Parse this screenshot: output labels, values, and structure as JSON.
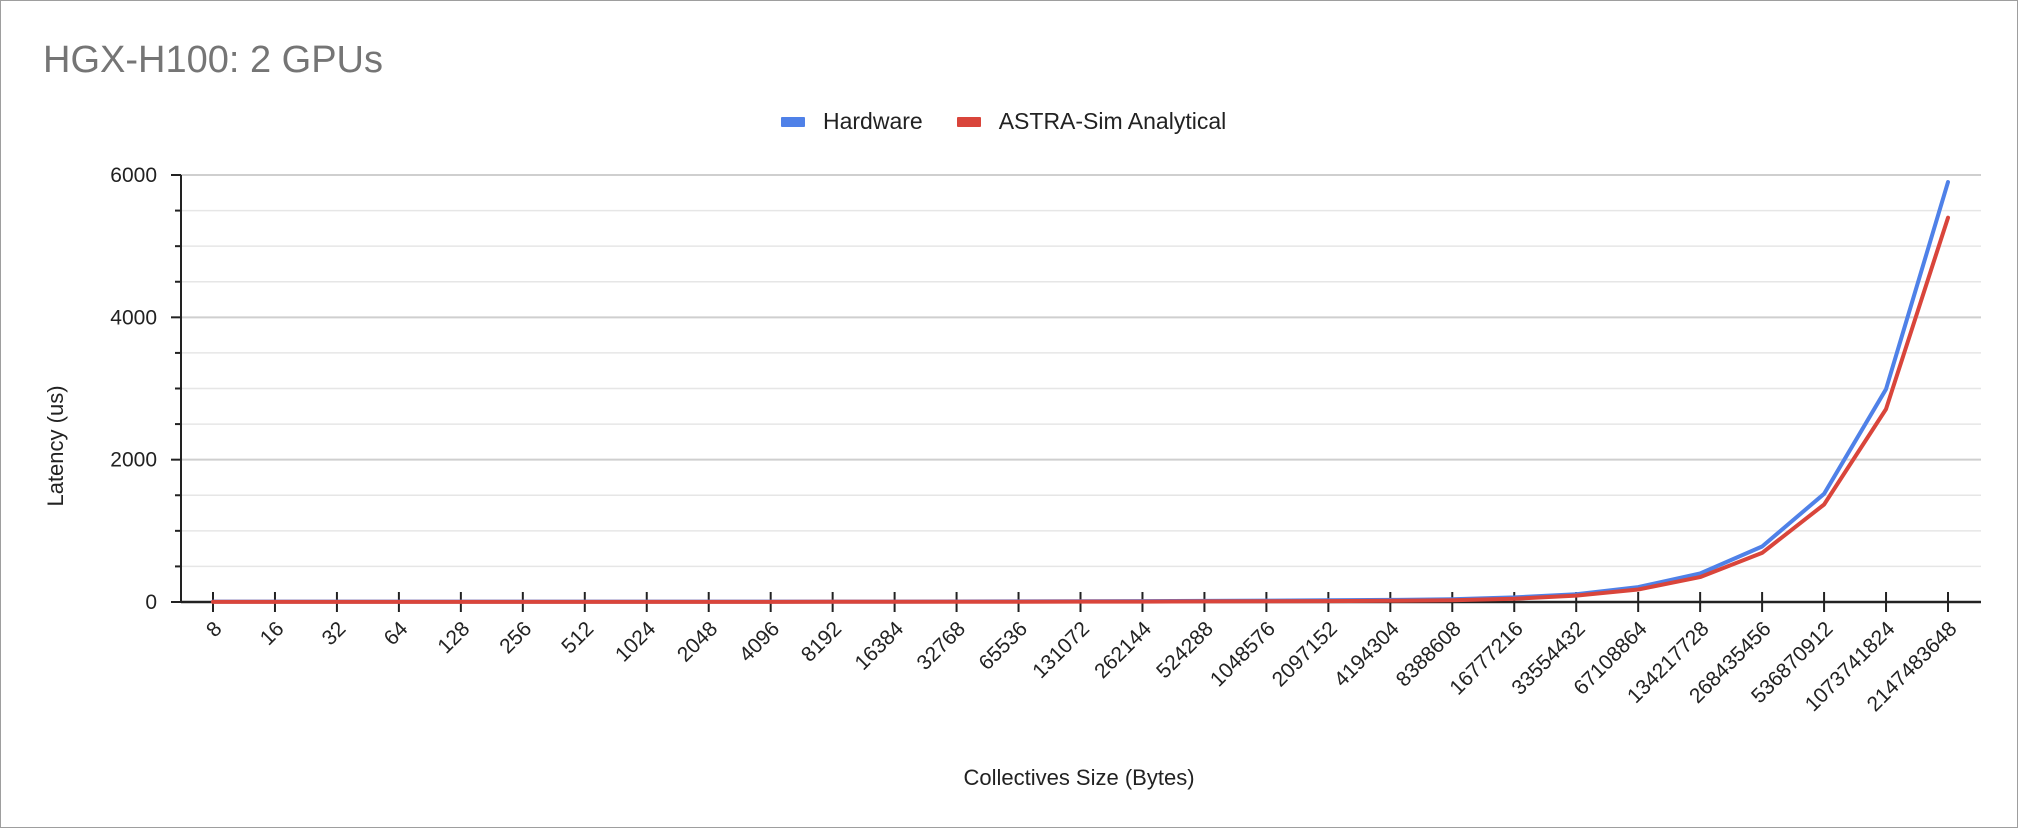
{
  "chart_data": {
    "type": "line",
    "title": "HGX-H100: 2 GPUs",
    "xlabel": "Collectives Size (Bytes)",
    "ylabel": "Latency (us)",
    "ylim": [
      0,
      6000
    ],
    "yticks": [
      "0",
      "2000",
      "4000",
      "6000"
    ],
    "grid": true,
    "legend_position": "top-center",
    "categories": [
      "8",
      "16",
      "32",
      "64",
      "128",
      "256",
      "512",
      "1024",
      "2048",
      "4096",
      "8192",
      "16384",
      "32768",
      "65536",
      "131072",
      "262144",
      "524288",
      "1048576",
      "2097152",
      "4194304",
      "8388608",
      "16777216",
      "33554432",
      "67108864",
      "134217728",
      "268435456",
      "536870912",
      "1073741824",
      "2147483648"
    ],
    "series": [
      {
        "name": "Hardware",
        "color": "#4f81e8",
        "values": [
          5,
          5,
          5,
          5,
          5,
          5,
          5,
          5,
          5,
          5,
          6,
          6,
          7,
          8,
          10,
          12,
          15,
          20,
          25,
          30,
          40,
          65,
          110,
          210,
          400,
          780,
          1520,
          2990,
          5900
        ]
      },
      {
        "name": "ASTRA-Sim Analytical",
        "color": "#d9453b",
        "values": [
          2,
          2,
          2,
          2,
          2,
          2,
          2,
          2,
          2,
          2,
          3,
          3,
          3,
          4,
          5,
          6,
          8,
          10,
          13,
          17,
          25,
          45,
          90,
          175,
          350,
          690,
          1370,
          2710,
          5400
        ]
      }
    ]
  }
}
